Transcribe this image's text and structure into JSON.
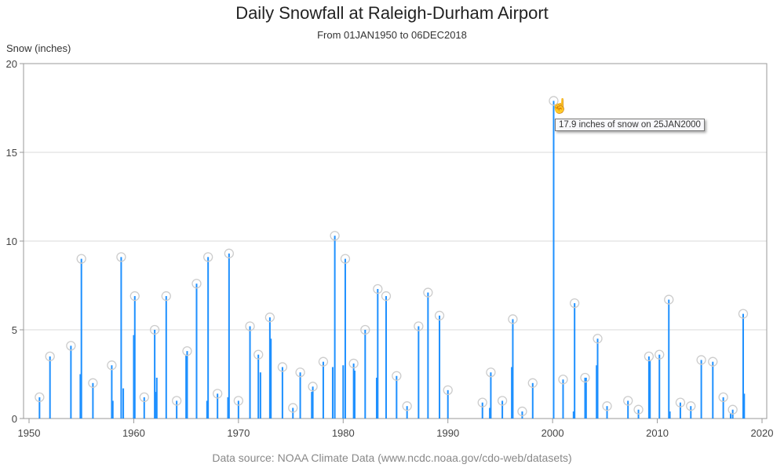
{
  "chart_data": {
    "type": "bar",
    "title": "Daily Snowfall at Raleigh-Durham Airport",
    "subtitle": "From 01JAN1950 to 06DEC2018",
    "ylabel": "Snow (inches)",
    "xlabel": "",
    "footnote": "Data source: NOAA Climate Data (www.ncdc.noaa.gov/cdo-web/datasets)",
    "xlim": [
      1950,
      2020
    ],
    "ylim": [
      0,
      20
    ],
    "xticks": [
      1950,
      1960,
      1970,
      1980,
      1990,
      2000,
      2010,
      2020
    ],
    "yticks": [
      0,
      5,
      10,
      15,
      20
    ],
    "grid": "horizontal",
    "bar_color": "#1e90ff",
    "marker_color": "#cccccc",
    "annual_max": [
      [
        1951.0,
        1.2
      ],
      [
        1952.0,
        3.5
      ],
      [
        1954.0,
        4.1
      ],
      [
        1955.0,
        9.0
      ],
      [
        1956.1,
        2.0
      ],
      [
        1957.9,
        3.0
      ],
      [
        1958.8,
        9.1
      ],
      [
        1960.1,
        6.9
      ],
      [
        1961.0,
        1.2
      ],
      [
        1962.0,
        5.0
      ],
      [
        1963.1,
        6.9
      ],
      [
        1964.1,
        1.0
      ],
      [
        1965.1,
        3.8
      ],
      [
        1966.0,
        7.6
      ],
      [
        1967.1,
        9.1
      ],
      [
        1968.0,
        1.4
      ],
      [
        1969.1,
        9.3
      ],
      [
        1970.0,
        1.0
      ],
      [
        1971.1,
        5.2
      ],
      [
        1971.9,
        3.6
      ],
      [
        1973.0,
        5.7
      ],
      [
        1974.2,
        2.9
      ],
      [
        1975.2,
        0.6
      ],
      [
        1975.9,
        2.6
      ],
      [
        1977.1,
        1.8
      ],
      [
        1978.1,
        3.2
      ],
      [
        1979.2,
        10.3
      ],
      [
        1980.2,
        9.0
      ],
      [
        1981.0,
        3.1
      ],
      [
        1982.1,
        5.0
      ],
      [
        1983.3,
        7.3
      ],
      [
        1984.1,
        6.9
      ],
      [
        1985.1,
        2.4
      ],
      [
        1986.1,
        0.7
      ],
      [
        1987.2,
        5.2
      ],
      [
        1988.1,
        7.1
      ],
      [
        1989.2,
        5.8
      ],
      [
        1990.0,
        1.6
      ],
      [
        1993.3,
        0.9
      ],
      [
        1994.1,
        2.6
      ],
      [
        1995.2,
        1.0
      ],
      [
        1996.2,
        5.6
      ],
      [
        1997.1,
        0.4
      ],
      [
        1998.1,
        2.0
      ],
      [
        2000.1,
        17.9
      ],
      [
        2001.0,
        2.2
      ],
      [
        2002.1,
        6.5
      ],
      [
        2003.1,
        2.3
      ],
      [
        2004.3,
        4.5
      ],
      [
        2005.2,
        0.7
      ],
      [
        2007.2,
        1.0
      ],
      [
        2008.2,
        0.5
      ],
      [
        2009.2,
        3.5
      ],
      [
        2010.2,
        3.6
      ],
      [
        2011.1,
        6.7
      ],
      [
        2012.2,
        0.9
      ],
      [
        2013.2,
        0.7
      ],
      [
        2014.2,
        3.3
      ],
      [
        2015.3,
        3.2
      ],
      [
        2016.3,
        1.2
      ],
      [
        2017.2,
        0.5
      ],
      [
        2018.2,
        5.9
      ]
    ],
    "other_days": [
      [
        1954.9,
        2.5
      ],
      [
        1958.0,
        1.0
      ],
      [
        1959.0,
        1.7
      ],
      [
        1960.0,
        4.7
      ],
      [
        1962.2,
        2.3
      ],
      [
        1962.1,
        1.5
      ],
      [
        1967.0,
        1.0
      ],
      [
        1969.0,
        1.2
      ],
      [
        1972.1,
        2.6
      ],
      [
        1973.1,
        4.5
      ],
      [
        1977.0,
        1.5
      ],
      [
        1979.0,
        2.9
      ],
      [
        1980.0,
        3.0
      ],
      [
        1983.2,
        2.3
      ],
      [
        1996.1,
        2.9
      ],
      [
        2002.0,
        0.4
      ],
      [
        2004.2,
        3.0
      ],
      [
        2009.3,
        3.3
      ],
      [
        2011.2,
        0.4
      ],
      [
        2018.3,
        1.4
      ],
      [
        1965.0,
        3.6
      ],
      [
        1981.1,
        2.7
      ],
      [
        2003.2,
        2.3
      ],
      [
        1994.0,
        0.6
      ],
      [
        2017.0,
        0.3
      ]
    ],
    "tooltip": "17.9 inches of snow on 25JAN2000"
  }
}
